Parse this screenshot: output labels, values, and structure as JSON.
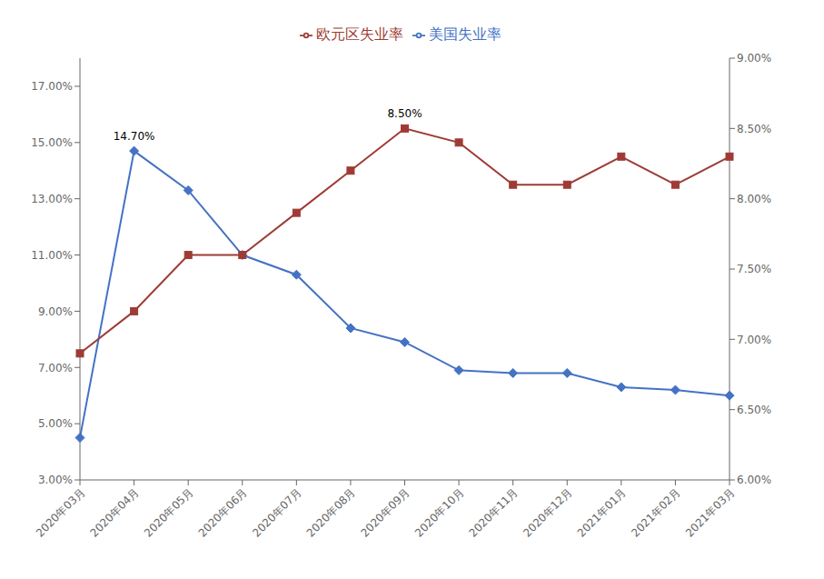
{
  "chart_data": {
    "type": "line",
    "categories": [
      "2020年03月",
      "2020年04月",
      "2020年05月",
      "2020年06月",
      "2020年07月",
      "2020年08月",
      "2020年09月",
      "2020年10月",
      "2020年11月",
      "2020年12月",
      "2021年01月",
      "2021年02月",
      "2021年03月"
    ],
    "series": [
      {
        "name": "美国失业率",
        "color": "#4472C4",
        "marker": "diamond",
        "values": [
          0.045,
          0.147,
          0.133,
          0.11,
          0.103,
          0.084,
          0.079,
          0.069,
          0.068,
          0.068,
          0.063,
          0.062,
          0.06
        ]
      },
      {
        "name": "欧元区失业率",
        "color": "#9E3B35",
        "marker": "square",
        "axis": "y2",
        "values": [
          0.069,
          0.072,
          0.076,
          0.076,
          0.079,
          0.082,
          0.085,
          0.084,
          0.081,
          0.081,
          0.083,
          0.081,
          0.083
        ]
      }
    ],
    "ylim": [
      0.03,
      0.18
    ],
    "yticks": [
      {
        "value": 0.03,
        "label": "3.00%"
      },
      {
        "value": 0.05,
        "label": "5.00%"
      },
      {
        "value": 0.07,
        "label": "7.00%"
      },
      {
        "value": 0.09,
        "label": "9.00%"
      },
      {
        "value": 0.11,
        "label": "11.00%"
      },
      {
        "value": 0.13,
        "label": "13.00%"
      },
      {
        "value": 0.15,
        "label": "15.00%"
      },
      {
        "value": 0.17,
        "label": "17.00%"
      }
    ],
    "y2lim": [
      0.06,
      0.09
    ],
    "y2ticks": [
      {
        "value": 0.06,
        "label": "6.00%"
      },
      {
        "value": 0.065,
        "label": "6.50%"
      },
      {
        "value": 0.07,
        "label": "7.00%"
      },
      {
        "value": 0.075,
        "label": "7.50%"
      },
      {
        "value": 0.08,
        "label": "8.00%"
      },
      {
        "value": 0.085,
        "label": "8.50%"
      },
      {
        "value": 0.09,
        "label": "9.00%"
      }
    ],
    "grid": false,
    "legend": "top",
    "annotations": [
      {
        "text": "14.70%",
        "category": "2020年04月",
        "value": 0.147,
        "axis": "y"
      },
      {
        "text": "8.50%",
        "category": "2020年09月",
        "value": 0.085,
        "axis": "y2"
      }
    ]
  }
}
